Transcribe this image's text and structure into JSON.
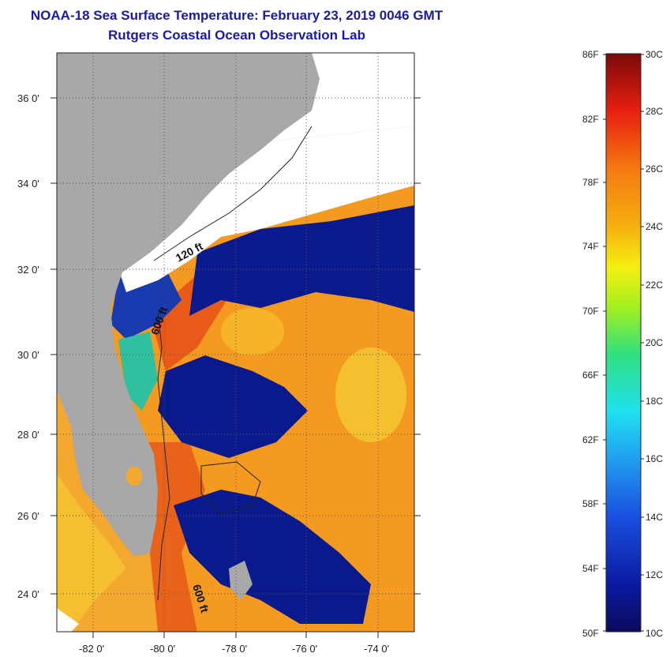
{
  "header": {
    "title": "NOAA-18 Sea Surface Temperature:  February 23, 2019 0046 GMT",
    "subtitle": "Rutgers Coastal Ocean Observation Lab"
  },
  "map": {
    "lat_labels": [
      "36 0'",
      "34 0'",
      "32 0'",
      "30 0'",
      "28 0'",
      "26 0'",
      "24 0'"
    ],
    "lon_labels": [
      "-82 0'",
      "-80 0'",
      "-78 0'",
      "-76 0'",
      "-74 0'"
    ],
    "contour_labels": [
      "120 ft",
      "600 ft",
      "600 ft"
    ],
    "colors": {
      "land": "#a8a8a8",
      "cloud": "#ffffff",
      "cold": "#0a1a8c",
      "warm": "#f59a20",
      "hot": "#e85a18"
    }
  },
  "colorbar": {
    "fahrenheit": [
      "86F",
      "82F",
      "78F",
      "74F",
      "70F",
      "66F",
      "62F",
      "58F",
      "54F",
      "50F"
    ],
    "celsius": [
      "30C",
      "28C",
      "26C",
      "24C",
      "22C",
      "20C",
      "18C",
      "16C",
      "14C",
      "12C",
      "10C"
    ]
  }
}
